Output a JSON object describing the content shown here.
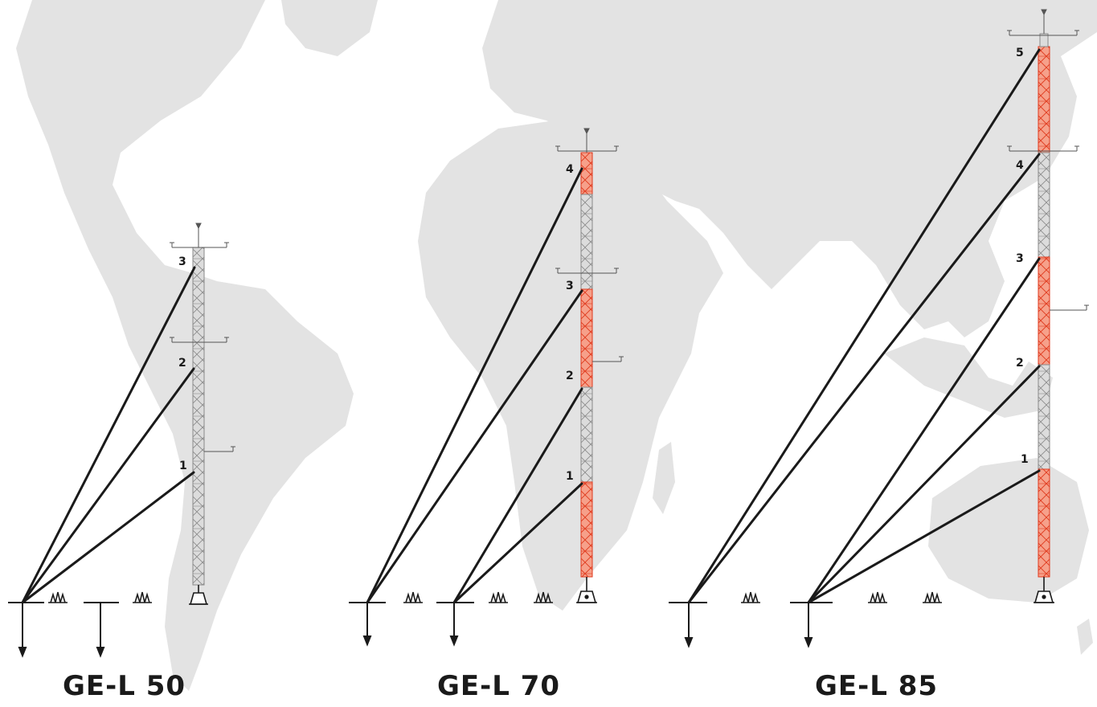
{
  "towers": [
    {
      "caption": "GE-L 50",
      "levels": [
        "1",
        "2",
        "3"
      ]
    },
    {
      "caption": "GE-L 70",
      "levels": [
        "1",
        "2",
        "3",
        "4"
      ]
    },
    {
      "caption": "GE-L 85",
      "levels": [
        "1",
        "2",
        "3",
        "4",
        "5"
      ]
    }
  ],
  "colors": {
    "map": "#e3e3e3",
    "guy_wire": "#1a1a1a",
    "lattice": "#8a8a8a",
    "red_section": "#e84a2a"
  }
}
